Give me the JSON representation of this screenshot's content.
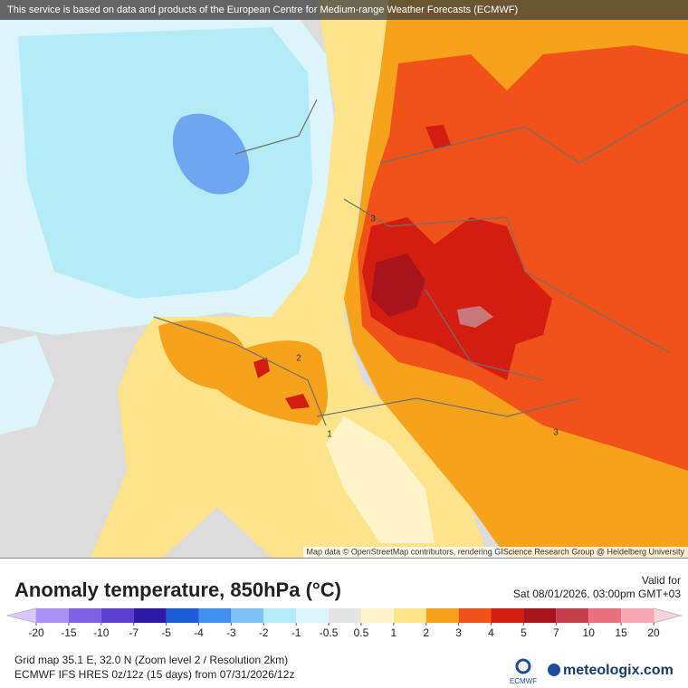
{
  "banner": "This service is based on data and products of the European Centre for Medium-range Weather Forecasts (ECMWF)",
  "attribution": "Map data © OpenStreetMap contributors, rendering GIScience Research Group @ Heidelberg University",
  "map": {
    "contour_labels": [
      "3",
      "2",
      "1",
      "3"
    ]
  },
  "legend": {
    "title": "Anomaly temperature, 850hPa (°C)",
    "valid_label": "Valid for",
    "valid_time": "Sat 08/01/2026, 03:00pm GMT+03",
    "ticks": [
      -20,
      -15,
      -10,
      -7,
      -5,
      -4,
      -3,
      -2,
      -1,
      -0.5,
      0.5,
      1,
      2,
      3,
      4,
      5,
      7,
      10,
      15,
      20
    ],
    "colors": [
      "#a890f4",
      "#7c62e2",
      "#5a3fcf",
      "#2e1aa6",
      "#1c5bd6",
      "#3f8ef0",
      "#7cc1f4",
      "#b3ecf6",
      "#dbf5fa",
      "#e4e4e4",
      "#fff4c9",
      "#fde38a",
      "#f7a21b",
      "#f0521a",
      "#d21d10",
      "#a8141b",
      "#c43f4a",
      "#e8707c",
      "#f5a6b0"
    ],
    "below_color": "#d9c8fb",
    "above_color": "#fbd2dc"
  },
  "footer": {
    "grid_info": "Grid map 35.1 E, 32.0 N (Zoom level 2 / Resolution 2km)",
    "model_info": "ECMWF IFS HRES 0z/12z (15 days) from 07/31/2026/12z",
    "ecmwf_logo": "ECMWF",
    "brand": "meteologix.com"
  }
}
